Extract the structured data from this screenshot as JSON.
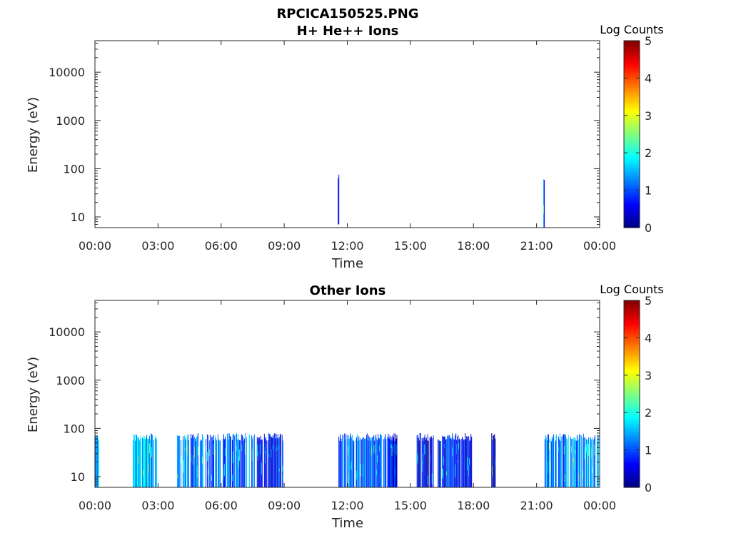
{
  "figure": {
    "file_title": "RPCICA150525.PNG"
  },
  "chart_data": [
    {
      "type": "heatmap",
      "title": "H+ He++ Ions",
      "xlabel": "Time",
      "ylabel": "Energy (eV)",
      "x_ticks": [
        "00:00",
        "03:00",
        "06:00",
        "09:00",
        "12:00",
        "15:00",
        "18:00",
        "21:00",
        "00:00"
      ],
      "xlim_hours": [
        0,
        24
      ],
      "y_scale": "log",
      "y_ticks": [
        10,
        100,
        1000,
        10000
      ],
      "ylim": [
        6,
        45000
      ],
      "colorbar": {
        "label": "Log Counts",
        "ticks": [
          0,
          1,
          2,
          3,
          4,
          5
        ],
        "colormap": "jet",
        "range": [
          0,
          5
        ]
      },
      "blocks": [
        {
          "start_h": 11.55,
          "end_h": 11.6,
          "emin": 7,
          "emax": 80,
          "level": 0.5,
          "density": 0.9
        },
        {
          "start_h": 21.32,
          "end_h": 21.37,
          "emin": 6,
          "emax": 80,
          "level": 1.0,
          "density": 0.9
        }
      ]
    },
    {
      "type": "heatmap",
      "title": "Other Ions",
      "xlabel": "Time",
      "ylabel": "Energy (eV)",
      "x_ticks": [
        "00:00",
        "03:00",
        "06:00",
        "09:00",
        "12:00",
        "15:00",
        "18:00",
        "21:00",
        "00:00"
      ],
      "xlim_hours": [
        0,
        24
      ],
      "y_scale": "log",
      "y_ticks": [
        10,
        100,
        1000,
        10000
      ],
      "ylim": [
        6,
        45000
      ],
      "colorbar": {
        "label": "Log Counts",
        "ticks": [
          0,
          1,
          2,
          3,
          4,
          5
        ],
        "colormap": "jet",
        "range": [
          0,
          5
        ]
      },
      "blocks": [
        {
          "start_h": 0.0,
          "end_h": 0.2,
          "emin": 6,
          "emax": 80,
          "level": 1.6,
          "density": 1.0
        },
        {
          "start_h": 1.8,
          "end_h": 2.95,
          "emin": 6,
          "emax": 80,
          "level": 1.6,
          "density": 0.9
        },
        {
          "start_h": 3.9,
          "end_h": 7.6,
          "emin": 6,
          "emax": 80,
          "level": 1.2,
          "density": 0.75
        },
        {
          "start_h": 7.7,
          "end_h": 8.95,
          "emin": 6,
          "emax": 80,
          "level": 0.7,
          "density": 0.85
        },
        {
          "start_h": 11.55,
          "end_h": 13.85,
          "emin": 6,
          "emax": 80,
          "level": 1.1,
          "density": 0.85
        },
        {
          "start_h": 13.9,
          "end_h": 14.4,
          "emin": 6,
          "emax": 80,
          "level": 0.8,
          "density": 0.9
        },
        {
          "start_h": 15.3,
          "end_h": 16.1,
          "emin": 6,
          "emax": 80,
          "level": 0.5,
          "density": 0.9
        },
        {
          "start_h": 16.3,
          "end_h": 17.9,
          "emin": 6,
          "emax": 80,
          "level": 0.7,
          "density": 0.9
        },
        {
          "start_h": 18.85,
          "end_h": 19.05,
          "emin": 6,
          "emax": 80,
          "level": 0.5,
          "density": 1.0
        },
        {
          "start_h": 21.35,
          "end_h": 24.0,
          "emin": 6,
          "emax": 80,
          "level": 1.3,
          "density": 0.75
        }
      ]
    }
  ]
}
